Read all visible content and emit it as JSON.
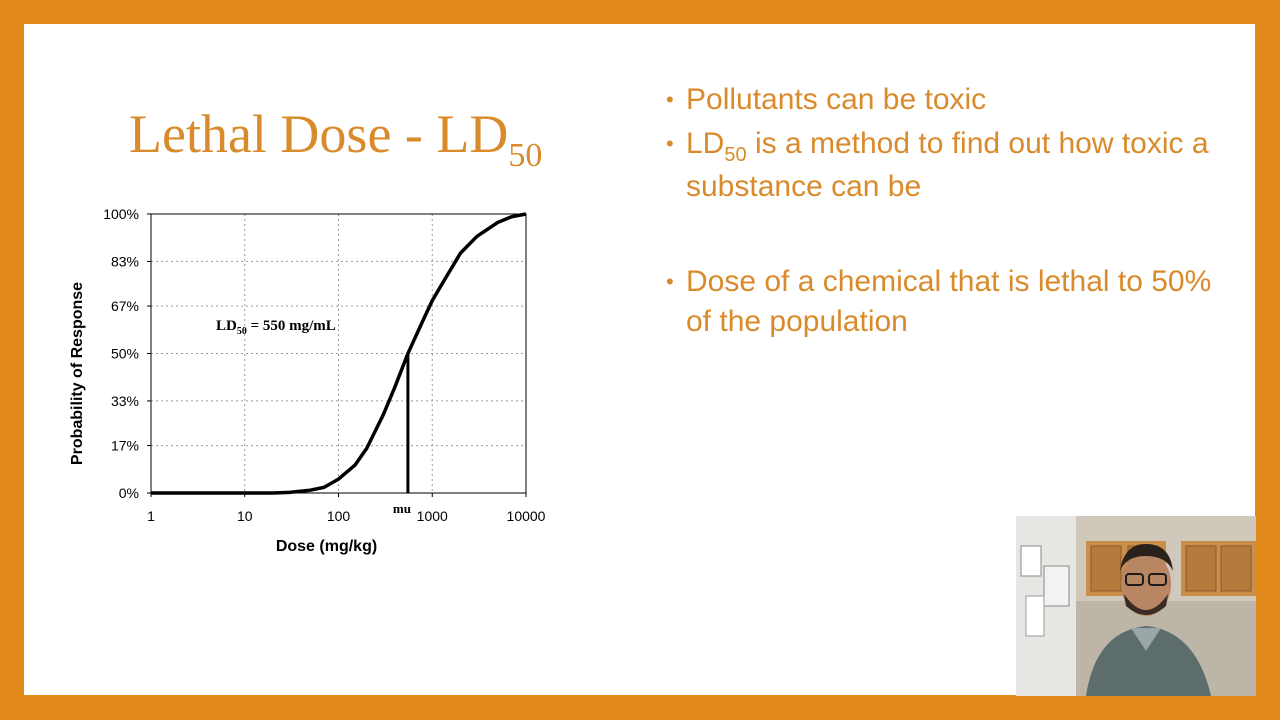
{
  "theme": {
    "accent": "#d98a2a",
    "frame": "#e28a1b",
    "background": "#ffffff"
  },
  "slide": {
    "title_main": "Lethal Dose - LD",
    "title_sub": "50",
    "bullets": [
      {
        "text": "Pollutants can be toxic"
      },
      {
        "prefix": "LD",
        "sub": "50",
        "text": " is a method to find out how toxic a substance can be"
      },
      {
        "text": "Dose of a chemical that is lethal to 50% of the population"
      }
    ]
  },
  "chart_data": {
    "type": "line",
    "xscale": "log",
    "xlim": [
      1,
      10000
    ],
    "ylim": [
      0,
      1
    ],
    "xticks": [
      1,
      10,
      100,
      1000,
      10000
    ],
    "xtick_labels": [
      "1",
      "10",
      "100",
      "1000",
      "10000"
    ],
    "yticks": [
      0,
      0.17,
      0.33,
      0.5,
      0.67,
      0.83,
      1.0
    ],
    "ytick_labels": [
      "0%",
      "17%",
      "33%",
      "50%",
      "67%",
      "83%",
      "100%"
    ],
    "xlabel": "Dose (mg/kg)",
    "ylabel": "Probability of Response",
    "grid": true,
    "series": [
      {
        "x": [
          1,
          5,
          10,
          20,
          30,
          50,
          70,
          100,
          150,
          200,
          300,
          400,
          550,
          800,
          1000,
          1500,
          2000,
          3000,
          5000,
          7000,
          10000
        ],
        "values": [
          0,
          0,
          0,
          0,
          0.002,
          0.01,
          0.02,
          0.05,
          0.1,
          0.16,
          0.28,
          0.38,
          0.5,
          0.62,
          0.69,
          0.79,
          0.86,
          0.92,
          0.97,
          0.99,
          1.0
        ]
      }
    ],
    "marker": {
      "x": 550,
      "label": "mu"
    },
    "annotation": {
      "prefix": "LD",
      "sub": "50",
      "text": " = 550 mg/mL"
    }
  }
}
